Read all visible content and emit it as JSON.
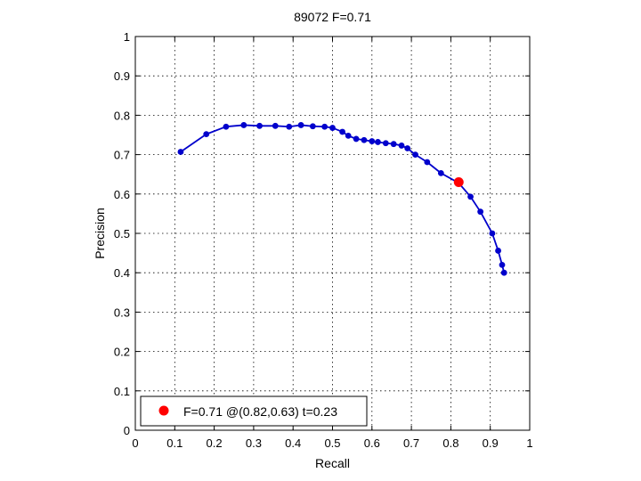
{
  "chart_data": {
    "type": "line",
    "title": "89072 F=0.71",
    "xlabel": "Recall",
    "ylabel": "Precision",
    "xlim": [
      0,
      1
    ],
    "ylim": [
      0,
      1
    ],
    "grid": true,
    "grid_style": "dotted",
    "x_ticks": [
      "0",
      "0.1",
      "0.2",
      "0.3",
      "0.4",
      "0.5",
      "0.6",
      "0.7",
      "0.8",
      "0.9",
      "1"
    ],
    "y_ticks": [
      "0",
      "0.1",
      "0.2",
      "0.3",
      "0.4",
      "0.5",
      "0.6",
      "0.7",
      "0.8",
      "0.9",
      "1"
    ],
    "series": [
      {
        "color": "#0000cc",
        "marker": "dot",
        "points": [
          [
            0.115,
            0.707
          ],
          [
            0.18,
            0.752
          ],
          [
            0.23,
            0.771
          ],
          [
            0.275,
            0.775
          ],
          [
            0.315,
            0.773
          ],
          [
            0.355,
            0.773
          ],
          [
            0.39,
            0.771
          ],
          [
            0.42,
            0.775
          ],
          [
            0.45,
            0.772
          ],
          [
            0.48,
            0.771
          ],
          [
            0.5,
            0.768
          ],
          [
            0.525,
            0.758
          ],
          [
            0.54,
            0.748
          ],
          [
            0.56,
            0.74
          ],
          [
            0.58,
            0.737
          ],
          [
            0.6,
            0.734
          ],
          [
            0.615,
            0.732
          ],
          [
            0.635,
            0.729
          ],
          [
            0.655,
            0.727
          ],
          [
            0.675,
            0.723
          ],
          [
            0.69,
            0.716
          ],
          [
            0.71,
            0.7
          ],
          [
            0.74,
            0.681
          ],
          [
            0.775,
            0.653
          ],
          [
            0.82,
            0.628
          ],
          [
            0.85,
            0.593
          ],
          [
            0.875,
            0.555
          ],
          [
            0.905,
            0.5
          ],
          [
            0.92,
            0.456
          ],
          [
            0.93,
            0.42
          ],
          [
            0.935,
            0.4
          ]
        ]
      }
    ],
    "best_point": {
      "recall": 0.82,
      "precision": 0.63,
      "color": "#ff0000"
    },
    "legend": {
      "location": "bottom-left",
      "label": "F=0.71 @(0.82,0.63) t=0.23"
    }
  }
}
